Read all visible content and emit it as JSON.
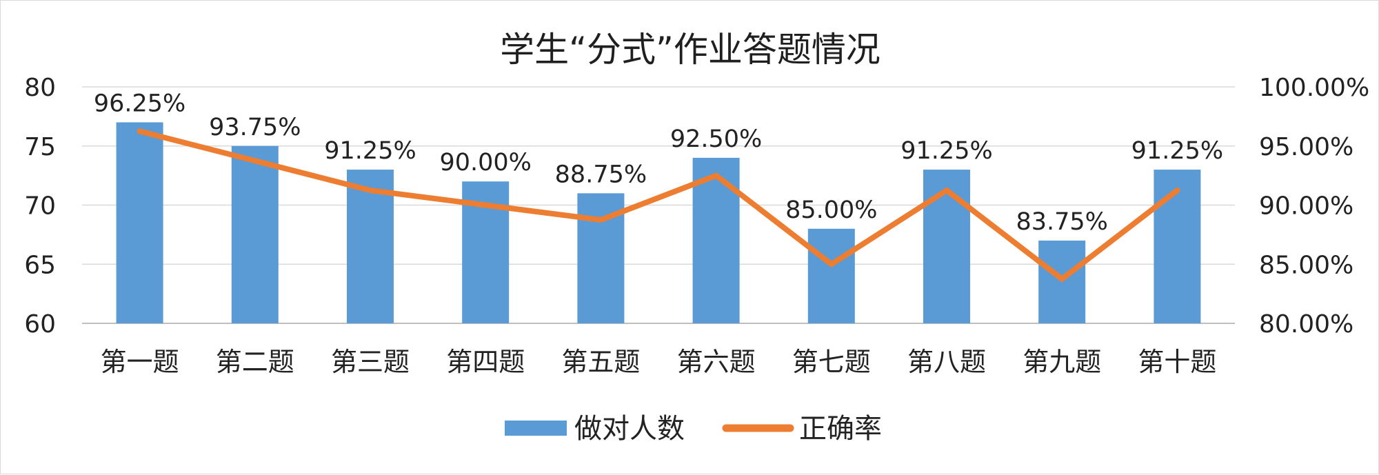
{
  "chart_data": {
    "type": "bar",
    "title": "学生“分式”作业答题情况",
    "categories": [
      "第一题",
      "第二题",
      "第三题",
      "第四题",
      "第五题",
      "第六题",
      "第七题",
      "第八题",
      "第九题",
      "第十题"
    ],
    "series": [
      {
        "name": "做对人数",
        "type": "bar",
        "axis": "left",
        "color": "#5b9bd5",
        "values": [
          77,
          75,
          73,
          72,
          71,
          74,
          68,
          73,
          67,
          73
        ]
      },
      {
        "name": "正确率",
        "type": "line",
        "axis": "right",
        "color": "#ed7d31",
        "values": [
          96.25,
          93.75,
          91.25,
          90.0,
          88.75,
          92.5,
          85.0,
          91.25,
          83.75,
          91.25
        ],
        "data_labels": [
          "96.25%",
          "93.75%",
          "91.25%",
          "90.00%",
          "88.75%",
          "92.50%",
          "85.00%",
          "91.25%",
          "83.75%",
          "91.25%"
        ]
      }
    ],
    "y_left": {
      "ylim": [
        60,
        80
      ],
      "ticks": [
        60,
        65,
        70,
        75,
        80
      ],
      "tick_labels": [
        "60",
        "65",
        "70",
        "75",
        "80"
      ]
    },
    "y_right": {
      "ylim": [
        80,
        100
      ],
      "ticks": [
        80,
        85,
        90,
        95,
        100
      ],
      "tick_labels": [
        "80.00%",
        "85.00%",
        "90.00%",
        "95.00%",
        "100.00%"
      ]
    },
    "grid": true,
    "legend_position": "bottom",
    "legend": [
      {
        "label": "做对人数",
        "symbol": "bar",
        "color": "#5b9bd5"
      },
      {
        "label": "正确率",
        "symbol": "line",
        "color": "#ed7d31"
      }
    ]
  }
}
